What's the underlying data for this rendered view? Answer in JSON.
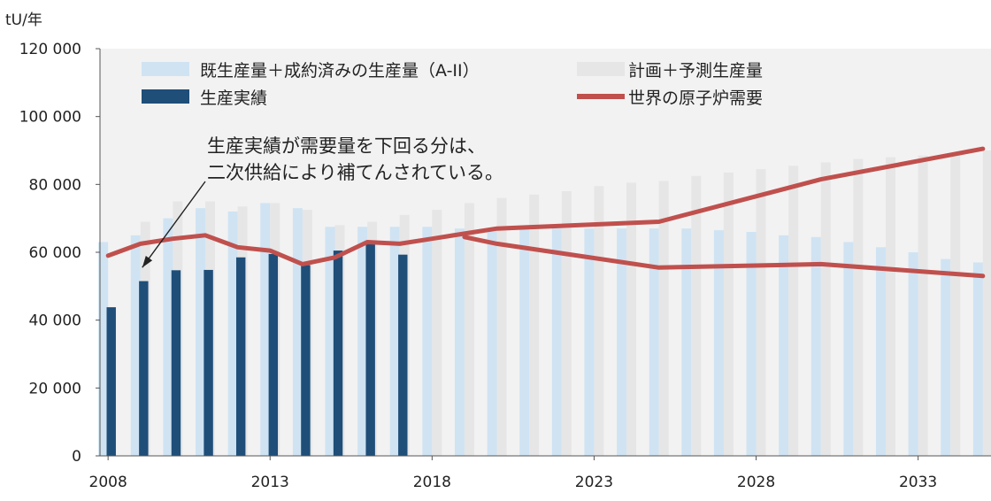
{
  "chart_data": {
    "type": "bar",
    "unit_label": "tU/年",
    "x_ticks": [
      "2008",
      "2013",
      "2018",
      "2023",
      "2028",
      "2033"
    ],
    "y_ticks": [
      "0",
      "20 000",
      "40 000",
      "60 000",
      "80 000",
      "100 000",
      "120 000"
    ],
    "ylim": [
      0,
      120000
    ],
    "xlim": [
      2007.75,
      2035.25
    ],
    "legend": {
      "existing": "既生産量＋成約済みの生産量（A-II）",
      "planned": "計画＋予測生産量",
      "actual": "生産実績",
      "demand": "世界の原子炉需要"
    },
    "annotation": {
      "lines": [
        "生産実績が需要量を下回る分は、",
        "二次供給により補てんされている。"
      ],
      "arrow_target": {
        "x": 2009,
        "y": 55000
      }
    },
    "colors": {
      "existing": "#cfe3f3",
      "planned": "#e6e6e6",
      "actual": "#1f4e79",
      "demand": "#c0504d",
      "background": "#f2f2f2"
    },
    "years": [
      2008,
      2009,
      2010,
      2011,
      2012,
      2013,
      2014,
      2015,
      2016,
      2017,
      2018,
      2019,
      2020,
      2021,
      2022,
      2023,
      2024,
      2025,
      2026,
      2027,
      2028,
      2029,
      2030,
      2031,
      2032,
      2033,
      2034,
      2035
    ],
    "series": [
      {
        "name": "既生産量＋成約済みの生産量（A-II）",
        "values": [
          63000,
          65000,
          70000,
          73000,
          72000,
          74500,
          73000,
          67500,
          67500,
          67500,
          67500,
          67000,
          67000,
          67000,
          67000,
          67000,
          67000,
          67000,
          67000,
          66500,
          66000,
          65000,
          64500,
          63000,
          61500,
          60000,
          58000,
          57000
        ]
      },
      {
        "name": "計画＋予測生産量",
        "values": [
          null,
          69000,
          75000,
          75000,
          73500,
          74500,
          72500,
          68000,
          69000,
          71000,
          72500,
          74500,
          76000,
          77000,
          78000,
          79500,
          80500,
          81000,
          82500,
          83500,
          84500,
          85500,
          86500,
          87500,
          88000,
          88500,
          89000,
          90000
        ]
      },
      {
        "name": "生産実績",
        "values": [
          43800,
          51500,
          54700,
          54800,
          58500,
          59500,
          56200,
          60500,
          62500,
          59300
        ]
      },
      {
        "name": "世界の原子炉需要",
        "lines": [
          {
            "x": [
              2008,
              2009,
              2010,
              2011,
              2012,
              2013,
              2014,
              2015,
              2016,
              2017,
              2018,
              2019,
              2020,
              2025,
              2030,
              2035
            ],
            "y": [
              59000,
              62500,
              64000,
              65000,
              61500,
              60500,
              56500,
              58500,
              63000,
              62500,
              64000,
              65500,
              67000,
              69000,
              81500,
              90500
            ]
          },
          {
            "x": [
              2019,
              2020,
              2025,
              2030,
              2035
            ],
            "y": [
              64500,
              62500,
              55500,
              56500,
              53000
            ]
          }
        ]
      }
    ]
  }
}
